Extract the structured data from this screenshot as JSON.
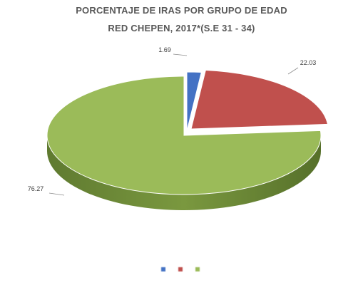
{
  "chart_data": {
    "type": "pie",
    "title": "PORCENTAJE DE IRAS POR GRUPO DE EDAD",
    "subtitle": "RED CHEPEN, 2017*(S.E 31 - 34)",
    "slices": [
      {
        "label": "",
        "value": 1.69,
        "value_label": "1.69",
        "color": "#4472c4"
      },
      {
        "label": "",
        "value": 22.03,
        "value_label": "22.03",
        "color": "#c0504d"
      },
      {
        "label": "",
        "value": 76.27,
        "value_label": "76.27",
        "color": "#9bbb59"
      }
    ],
    "legend_position": "bottom",
    "legend_items": [
      "",
      "",
      ""
    ]
  }
}
